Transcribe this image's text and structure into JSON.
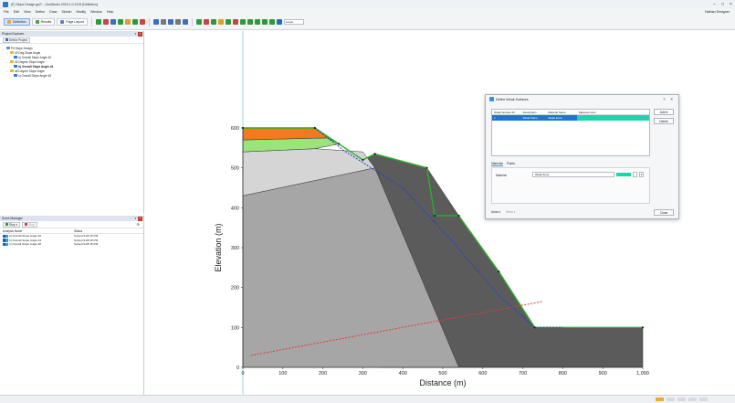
{
  "window": {
    "title": "(F) Slope Design.gs2* - GeoStudio 2023.1.0.2129 [Definition]",
    "user": "Nathan Designer"
  },
  "menu": [
    "File",
    "Edit",
    "View",
    "Define",
    "Draw",
    "Sketch",
    "Modify",
    "Window",
    "Help"
  ],
  "toolbar": {
    "tabs": [
      {
        "label": "Definition",
        "active": true
      },
      {
        "label": "Results",
        "active": false
      },
      {
        "label": "Page Layout",
        "active": false
      }
    ],
    "select_value": "Linear"
  },
  "project_explorer": {
    "title": "Project Explorer",
    "define_button": "Define Project",
    "tree": [
      {
        "label": "Pit Slope Design",
        "level": 0,
        "color": "#6b8fbf"
      },
      {
        "label": "40 Deg Slope Angle",
        "level": 1,
        "color": "#e6b83a"
      },
      {
        "label": "a) Overall Slope Angle 40",
        "level": 2,
        "color": "#2f7bd0"
      },
      {
        "label": "44 Degree Slope Angle",
        "level": 1,
        "color": "#e6b83a"
      },
      {
        "label": "b) Overall Slope Angle 44",
        "level": 2,
        "color": "#2f7bd0",
        "bold": true
      },
      {
        "label": "48 Degree Slope Angle",
        "level": 1,
        "color": "#e6b83a"
      },
      {
        "label": "c) Overall Slope Angle 48",
        "level": 2,
        "color": "#2f7bd0"
      }
    ]
  },
  "solve_manager": {
    "title": "Solve Manager",
    "solve_button": "Stop",
    "stop_button": "Stop",
    "columns": [
      "Analysis Name",
      "Status"
    ],
    "rows": [
      {
        "name": "a) Overall Slope Angle 40",
        "status": "Solved 9:28:15 PM"
      },
      {
        "name": "b) Overall Slope Angle 44",
        "status": "Solved 9:28:15 PM"
      },
      {
        "name": "c) Overall Slope Angle 48",
        "status": "Solved 9:28:15 PM"
      }
    ]
  },
  "chart_data": {
    "type": "diagram",
    "xlabel": "Distance (m)",
    "ylabel": "Elevation (m)",
    "xlim": [
      0,
      1000
    ],
    "ylim": [
      0,
      600
    ],
    "x_ticks": [
      "0",
      "100",
      "200",
      "300",
      "400",
      "500",
      "600",
      "700",
      "800",
      "900",
      "1,000"
    ],
    "y_ticks": [
      "0",
      "100",
      "200",
      "300",
      "400",
      "500",
      "600"
    ],
    "regions": [
      {
        "name": "bottom-dark",
        "color": "#5b5b5b",
        "points": [
          [
            500,
            0
          ],
          [
            1000,
            0
          ],
          [
            1000,
            100
          ],
          [
            730,
            100
          ],
          [
            640,
            240
          ],
          [
            540,
            380
          ],
          [
            460,
            500
          ],
          [
            330,
            535
          ],
          [
            300,
            520
          ],
          [
            340,
            0
          ]
        ]
      },
      {
        "name": "lower-grey",
        "color": "#a6a6a6",
        "points": [
          [
            0,
            0
          ],
          [
            540,
            0
          ],
          [
            330,
            500
          ],
          [
            0,
            430
          ]
        ]
      },
      {
        "name": "middle-light",
        "color": "#d5d5d5",
        "points": [
          [
            0,
            430
          ],
          [
            330,
            500
          ],
          [
            300,
            540
          ],
          [
            180,
            548
          ],
          [
            0,
            540
          ]
        ]
      },
      {
        "name": "green-layer",
        "color": "#9be37b",
        "points": [
          [
            0,
            540
          ],
          [
            180,
            548
          ],
          [
            240,
            560
          ],
          [
            210,
            575
          ],
          [
            0,
            570
          ]
        ]
      },
      {
        "name": "orange-top",
        "color": "#f07b1f",
        "points": [
          [
            0,
            570
          ],
          [
            210,
            575
          ],
          [
            240,
            560
          ],
          [
            180,
            600
          ],
          [
            0,
            600
          ]
        ]
      }
    ],
    "surface_line": [
      [
        0,
        600
      ],
      [
        180,
        600
      ],
      [
        240,
        560
      ],
      [
        300,
        520
      ],
      [
        330,
        535
      ],
      [
        460,
        500
      ],
      [
        480,
        380
      ],
      [
        540,
        380
      ],
      [
        640,
        240
      ],
      [
        730,
        100
      ],
      [
        1000,
        100
      ]
    ],
    "slip_surface": [
      [
        180,
        600
      ],
      [
        250,
        545
      ],
      [
        400,
        450
      ],
      [
        520,
        320
      ],
      [
        640,
        180
      ],
      [
        730,
        100
      ],
      [
        800,
        100
      ]
    ],
    "red_line": [
      [
        20,
        30
      ],
      [
        750,
        165
      ]
    ]
  },
  "dialog": {
    "title": "Define Weak Surfaces",
    "columns": [
      "Weak Surface ID",
      "Description",
      "Material Name",
      "Material Color"
    ],
    "rows": [
      {
        "id": "1",
        "description": "Weak Plane",
        "material": "Weak Zone",
        "color": "#1fd4ac"
      }
    ],
    "add_button": "Add",
    "delete_button": "Delete",
    "tabs": [
      "Materials",
      "Points"
    ],
    "material_label": "Material:",
    "material_value": "Weak Zone",
    "undo_label": "Undo",
    "redo_label": "Redo",
    "close_button": "Close"
  }
}
